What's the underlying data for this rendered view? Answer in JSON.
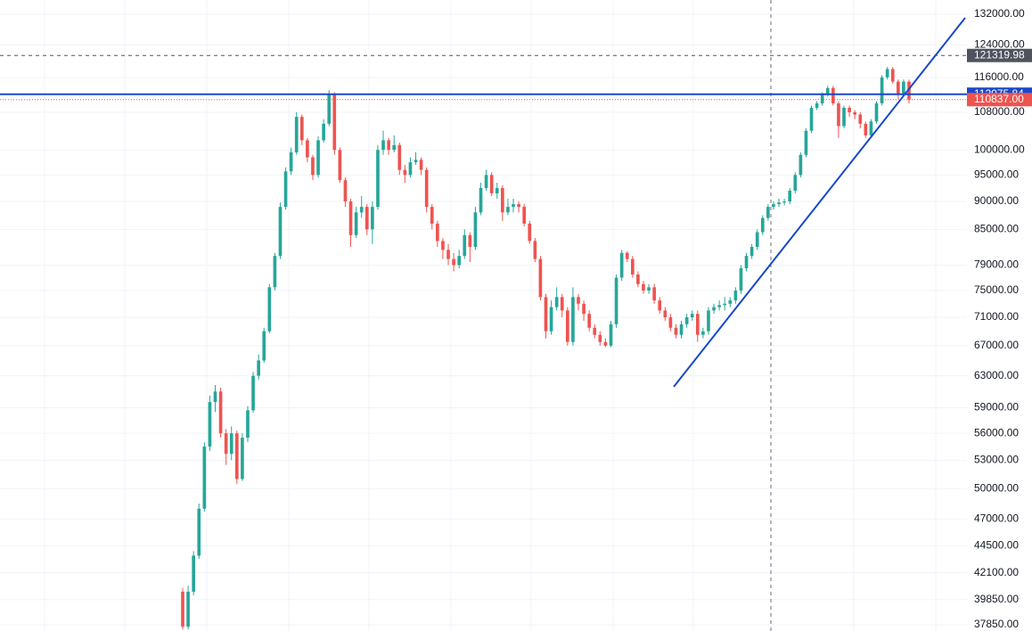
{
  "chart_data": {
    "type": "candlestick",
    "log_scale": true,
    "grid": true,
    "up_color": "#26a69a",
    "down_color": "#ef5350",
    "ylim": [
      37370,
      135900
    ],
    "yticks": [
      {
        "value": 132000,
        "label": "132000.00"
      },
      {
        "value": 124000,
        "label": "124000.00"
      },
      {
        "value": 116000,
        "label": "116000.00"
      },
      {
        "value": 108000,
        "label": "108000.00"
      },
      {
        "value": 100000,
        "label": "100000.00"
      },
      {
        "value": 95000,
        "label": "95000.00"
      },
      {
        "value": 90000,
        "label": "90000.00"
      },
      {
        "value": 85000,
        "label": "85000.00"
      },
      {
        "value": 79000,
        "label": "79000.00"
      },
      {
        "value": 75000,
        "label": "75000.00"
      },
      {
        "value": 71000,
        "label": "71000.00"
      },
      {
        "value": 67000,
        "label": "67000.00"
      },
      {
        "value": 63000,
        "label": "63000.00"
      },
      {
        "value": 59000,
        "label": "59000.00"
      },
      {
        "value": 56000,
        "label": "56000.00"
      },
      {
        "value": 53000,
        "label": "53000.00"
      },
      {
        "value": 50000,
        "label": "50000.00"
      },
      {
        "value": 47000,
        "label": "47000.00"
      },
      {
        "value": 44500,
        "label": "44500.00"
      },
      {
        "value": 42100,
        "label": "42100.00"
      },
      {
        "value": 39850,
        "label": "39850.00"
      },
      {
        "value": 37850,
        "label": "37850.00"
      }
    ],
    "price_lines": [
      {
        "value": 121319.98,
        "label": "121319.98",
        "color": "#50535e",
        "style": "dashed"
      },
      {
        "value": 112075.84,
        "label": "112075.84",
        "color": "#1848cc",
        "style": "solid"
      },
      {
        "value": 110837,
        "label": "110837.00",
        "color": "#ef5350",
        "style": "dotted"
      }
    ],
    "series": {
      "open": [
        40500,
        37700,
        40500,
        43600,
        48000,
        54500,
        59700,
        61000,
        56000,
        53700,
        56000,
        51000,
        55500,
        58700,
        63000,
        65000,
        69000,
        75500,
        80500,
        89000,
        95700,
        99500,
        107000,
        102000,
        98500,
        95000,
        102000,
        105500,
        112000,
        100000,
        94000,
        90000,
        84000,
        88000,
        89000,
        85000,
        89000,
        100000,
        102000,
        100000,
        101000,
        96000,
        95000,
        97500,
        98000,
        96000,
        89000,
        86000,
        83000,
        81500,
        80000,
        79000,
        80500,
        84000,
        82000,
        88000,
        92500,
        95000,
        91500,
        92500,
        88000,
        89000,
        89500,
        89000,
        86000,
        83000,
        80000,
        74000,
        69000,
        72500,
        74000,
        72000,
        67500,
        74000,
        73000,
        71500,
        69500,
        68500,
        67500,
        67000,
        70000,
        77000,
        81000,
        80000,
        77500,
        76000,
        75000,
        75500,
        73500,
        72000,
        71000,
        69500,
        68500,
        70000,
        71000,
        71500,
        68500,
        69000,
        72000,
        72500,
        72800,
        73000,
        73500,
        75000,
        78500,
        80500,
        82000,
        84500,
        87000,
        89000,
        89500,
        89800,
        90000,
        92000,
        95000,
        99000,
        104000,
        109000,
        110000,
        112000,
        113500,
        110000,
        105000,
        109000,
        108000,
        107500,
        105500,
        103000,
        106000,
        110000,
        116000,
        118000,
        115000,
        112000,
        115000
      ],
      "high": [
        40800,
        41000,
        44000,
        48500,
        55000,
        60500,
        61800,
        61500,
        56500,
        56800,
        56300,
        56000,
        59200,
        63500,
        65800,
        69500,
        76000,
        81000,
        89800,
        96500,
        100500,
        108000,
        107500,
        102500,
        99000,
        102800,
        106500,
        113000,
        112500,
        100500,
        94500,
        90500,
        89000,
        91000,
        89500,
        90000,
        101000,
        104000,
        102500,
        103000,
        101500,
        97000,
        98500,
        99500,
        98500,
        96500,
        89500,
        86500,
        83500,
        82500,
        81000,
        81500,
        85000,
        84500,
        89000,
        93500,
        96000,
        95500,
        93500,
        93000,
        90500,
        90500,
        90000,
        89500,
        86500,
        83500,
        80500,
        74500,
        73500,
        75500,
        74500,
        72500,
        75500,
        74500,
        73500,
        72000,
        70000,
        69000,
        68000,
        70500,
        77500,
        81500,
        81300,
        80500,
        78000,
        76500,
        76000,
        76000,
        74000,
        72500,
        71500,
        70000,
        70500,
        71500,
        72000,
        72000,
        69500,
        72500,
        73000,
        73500,
        74000,
        74000,
        75500,
        79000,
        81000,
        82500,
        85000,
        87500,
        89500,
        90000,
        90500,
        90500,
        92500,
        95500,
        99500,
        104500,
        109500,
        110500,
        112500,
        114000,
        114000,
        110500,
        109500,
        109500,
        108500,
        108000,
        106000,
        106500,
        110500,
        116500,
        118500,
        118500,
        115500,
        115500,
        115500
      ],
      "low": [
        37500,
        37500,
        40200,
        43300,
        47700,
        54000,
        58500,
        55500,
        52500,
        53000,
        50500,
        50800,
        55000,
        58400,
        62500,
        64700,
        68700,
        75000,
        80000,
        88500,
        95000,
        99000,
        101000,
        97500,
        94000,
        94500,
        101500,
        105000,
        99000,
        93500,
        89000,
        82000,
        83500,
        87000,
        84000,
        82500,
        88500,
        99000,
        99000,
        99500,
        95000,
        93500,
        94500,
        97000,
        95000,
        88000,
        85000,
        82000,
        80000,
        79000,
        78000,
        78500,
        80000,
        79500,
        81500,
        87500,
        92000,
        91000,
        90500,
        86500,
        87500,
        88000,
        88000,
        85500,
        82500,
        79500,
        73500,
        68000,
        68500,
        72000,
        71000,
        67000,
        67000,
        72000,
        70500,
        69000,
        68000,
        67000,
        66800,
        66800,
        69500,
        76500,
        79500,
        77000,
        75500,
        74500,
        74500,
        73000,
        71500,
        70500,
        69000,
        68000,
        68000,
        69500,
        70500,
        67500,
        68000,
        68500,
        71500,
        72000,
        72000,
        72500,
        73000,
        74500,
        78000,
        80000,
        81500,
        84000,
        86500,
        88500,
        89000,
        89300,
        89500,
        91500,
        94500,
        98500,
        103500,
        108500,
        109500,
        111500,
        109500,
        102500,
        104500,
        107000,
        106500,
        104500,
        102500,
        102500,
        105500,
        109500,
        115500,
        114500,
        111000,
        111500,
        110000
      ],
      "close": [
        37700,
        40500,
        43600,
        48000,
        54500,
        59700,
        61000,
        56000,
        53700,
        56000,
        51000,
        55500,
        58700,
        63000,
        65000,
        69000,
        75500,
        80500,
        89000,
        95700,
        99500,
        107000,
        102000,
        98500,
        95000,
        102000,
        105500,
        112000,
        100000,
        94000,
        90000,
        84000,
        88000,
        89000,
        85000,
        89000,
        100000,
        102000,
        100000,
        101000,
        96000,
        95000,
        97500,
        98000,
        96000,
        89000,
        86000,
        83000,
        81500,
        80000,
        79000,
        80500,
        84000,
        82000,
        88000,
        92500,
        95000,
        91500,
        92500,
        88000,
        89000,
        89500,
        89000,
        86000,
        83000,
        80000,
        74000,
        69000,
        72500,
        74000,
        72000,
        67500,
        74000,
        73000,
        71500,
        69500,
        68500,
        67500,
        67000,
        70000,
        77000,
        81000,
        80000,
        77500,
        76000,
        75000,
        75500,
        73500,
        72000,
        71000,
        69500,
        68500,
        70000,
        71000,
        71500,
        68500,
        69000,
        72000,
        72500,
        72800,
        73000,
        73500,
        75000,
        78500,
        80500,
        82000,
        84500,
        87000,
        89000,
        89500,
        89800,
        90000,
        92000,
        95000,
        99000,
        104000,
        109000,
        110000,
        112000,
        113500,
        110000,
        105000,
        109000,
        108000,
        107500,
        105500,
        103000,
        106000,
        110000,
        116000,
        118000,
        115000,
        112000,
        115000,
        110837
      ]
    }
  }
}
